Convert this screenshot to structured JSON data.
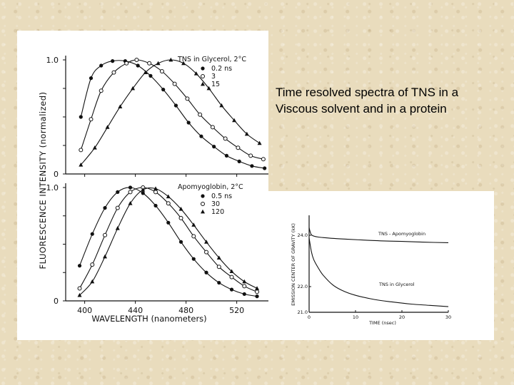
{
  "caption": {
    "line1": "Time resolved spectra of TNS in a",
    "line2": "Viscous solvent and in a protein"
  },
  "chart_data": [
    {
      "type": "line",
      "panel": "top",
      "title": "TNS in Glycerol, 2°C",
      "xlabel": "WAVELENGTH (nanometers)",
      "ylabel": "FLUORESCENCE INTENSITY (normalized)",
      "xlim": [
        385,
        545
      ],
      "ylim": [
        0,
        1.0
      ],
      "x_ticks": [
        400,
        440,
        480,
        520
      ],
      "x_tick_labels": [],
      "y_tick_labels": [
        "0",
        "1.0"
      ],
      "legend_position": "top-right",
      "series": [
        {
          "name": "0.2 ns",
          "marker": "filled-circle",
          "x": [
            397,
            405,
            413,
            422,
            432,
            442,
            452,
            462,
            472,
            482,
            492,
            502,
            512,
            522,
            532,
            542
          ],
          "y": [
            0.5,
            0.84,
            0.95,
            0.99,
            0.99,
            0.95,
            0.86,
            0.74,
            0.6,
            0.45,
            0.33,
            0.24,
            0.16,
            0.11,
            0.07,
            0.05
          ]
        },
        {
          "name": "3",
          "marker": "open-circle",
          "x": [
            397,
            405,
            413,
            423,
            433,
            441,
            451,
            461,
            471,
            481,
            491,
            501,
            511,
            521,
            531,
            541
          ],
          "y": [
            0.21,
            0.48,
            0.73,
            0.89,
            0.97,
            1.0,
            0.97,
            0.9,
            0.79,
            0.66,
            0.52,
            0.41,
            0.31,
            0.23,
            0.16,
            0.13
          ]
        },
        {
          "name": "15",
          "marker": "filled-triangle",
          "x": [
            397,
            408,
            418,
            428,
            438,
            448,
            458,
            468,
            478,
            488,
            498,
            508,
            518,
            528,
            538
          ],
          "y": [
            0.08,
            0.23,
            0.41,
            0.59,
            0.75,
            0.89,
            0.97,
            1.0,
            0.97,
            0.88,
            0.75,
            0.6,
            0.47,
            0.35,
            0.27
          ]
        }
      ]
    },
    {
      "type": "line",
      "panel": "bottom",
      "title": "Apomyoglobin, 2°C",
      "xlabel": "WAVELENGTH (nanometers)",
      "ylabel": "FLUORESCENCE INTENSITY (normalized)",
      "xlim": [
        385,
        545
      ],
      "ylim": [
        0,
        1.0
      ],
      "x_ticks": [
        400,
        440,
        480,
        520
      ],
      "x_tick_labels": [
        "400",
        "440",
        "480",
        "520"
      ],
      "y_tick_labels": [
        "0",
        "1.0"
      ],
      "legend_position": "top-right",
      "series": [
        {
          "name": "0.5 ns",
          "marker": "filled-circle",
          "x": [
            396,
            406,
            416,
            426,
            436,
            446,
            456,
            466,
            476,
            486,
            496,
            506,
            516,
            526,
            536
          ],
          "y": [
            0.31,
            0.59,
            0.82,
            0.96,
            1.0,
            0.95,
            0.84,
            0.69,
            0.52,
            0.37,
            0.25,
            0.16,
            0.1,
            0.06,
            0.04
          ]
        },
        {
          "name": "30",
          "marker": "open-circle",
          "x": [
            396,
            406,
            416,
            426,
            436,
            446,
            456,
            466,
            476,
            486,
            496,
            506,
            516,
            526,
            536
          ],
          "y": [
            0.11,
            0.32,
            0.58,
            0.82,
            0.96,
            1.0,
            0.96,
            0.86,
            0.73,
            0.57,
            0.43,
            0.3,
            0.21,
            0.13,
            0.08
          ]
        },
        {
          "name": "120",
          "marker": "filled-triangle",
          "x": [
            396,
            406,
            416,
            426,
            436,
            446,
            456,
            466,
            476,
            486,
            496,
            506,
            516,
            526,
            536
          ],
          "y": [
            0.05,
            0.17,
            0.39,
            0.64,
            0.86,
            0.98,
            0.99,
            0.92,
            0.81,
            0.67,
            0.52,
            0.38,
            0.26,
            0.17,
            0.11
          ]
        }
      ]
    },
    {
      "type": "line",
      "panel": "inset",
      "title": "",
      "xlabel": "TIME (nsec)",
      "ylabel": "EMISSION CENTER OF GRAVITY (kK)",
      "xlim": [
        0,
        30
      ],
      "ylim": [
        21.0,
        24.5
      ],
      "x_ticks": [
        0,
        10,
        20,
        30
      ],
      "x_tick_labels": [
        "0",
        "10",
        "20",
        "30"
      ],
      "y_ticks": [
        21.0,
        22.0,
        24.0
      ],
      "y_tick_labels": [
        "21.0",
        "22.0",
        "24.0"
      ],
      "series": [
        {
          "name": "TNS - Apomyoglobin",
          "x": [
            0,
            0.2,
            0.5,
            1,
            2,
            3,
            5,
            8,
            12,
            16,
            20,
            25,
            30
          ],
          "y": [
            24.3,
            24.15,
            24.02,
            23.97,
            23.93,
            23.91,
            23.88,
            23.85,
            23.81,
            23.78,
            23.76,
            23.73,
            23.71
          ]
        },
        {
          "name": "TNS in Glycerol",
          "x": [
            0,
            0.5,
            1,
            2,
            3,
            5,
            7,
            10,
            14,
            18,
            22,
            26,
            30
          ],
          "y": [
            23.9,
            23.35,
            23.05,
            22.72,
            22.45,
            22.08,
            21.86,
            21.66,
            21.5,
            21.4,
            21.32,
            21.27,
            21.22
          ]
        }
      ]
    }
  ]
}
